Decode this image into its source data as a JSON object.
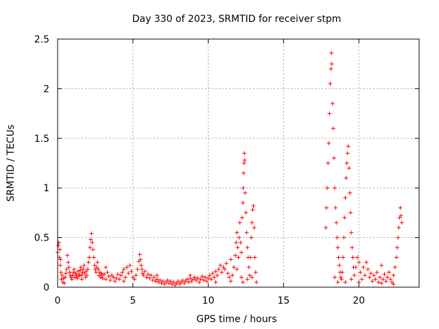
{
  "chart_data": {
    "type": "scatter",
    "title": "Day 330 of 2023, SRMTID for receiver stpm",
    "xlabel": "GPS time / hours",
    "ylabel": "SRMTID / TECUs",
    "xlim": [
      0,
      24
    ],
    "ylim": [
      0,
      2.5
    ],
    "xticks": [
      {
        "value": 0,
        "label": "0"
      },
      {
        "value": 5,
        "label": "5"
      },
      {
        "value": 10,
        "label": "10"
      },
      {
        "value": 15,
        "label": "15"
      },
      {
        "value": 20,
        "label": "20"
      }
    ],
    "yticks": [
      {
        "value": 0,
        "label": "0"
      },
      {
        "value": 0.5,
        "label": "0.5"
      },
      {
        "value": 1,
        "label": "1"
      },
      {
        "value": 1.5,
        "label": "1.5"
      },
      {
        "value": 2,
        "label": "2"
      },
      {
        "value": 2.5,
        "label": "2.5"
      }
    ],
    "grid": true,
    "marker": "+",
    "color": "#ff0000",
    "series": [
      {
        "name": "SRMTID",
        "points": [
          [
            0.0,
            0.35
          ],
          [
            0.05,
            0.42
          ],
          [
            0.08,
            0.45
          ],
          [
            0.12,
            0.3
          ],
          [
            0.15,
            0.38
          ],
          [
            0.18,
            0.22
          ],
          [
            0.22,
            0.15
          ],
          [
            0.25,
            0.08
          ],
          [
            0.3,
            0.12
          ],
          [
            0.35,
            0.05
          ],
          [
            0.4,
            0.09
          ],
          [
            0.45,
            0.04
          ],
          [
            0.5,
            0.1
          ],
          [
            0.55,
            0.14
          ],
          [
            0.6,
            0.18
          ],
          [
            0.65,
            0.32
          ],
          [
            0.7,
            0.25
          ],
          [
            0.75,
            0.2
          ],
          [
            0.8,
            0.15
          ],
          [
            0.85,
            0.12
          ],
          [
            0.9,
            0.1
          ],
          [
            0.95,
            0.08
          ],
          [
            1.0,
            0.12
          ],
          [
            1.05,
            0.15
          ],
          [
            1.1,
            0.18
          ],
          [
            1.15,
            0.1
          ],
          [
            1.2,
            0.14
          ],
          [
            1.25,
            0.12
          ],
          [
            1.3,
            0.09
          ],
          [
            1.35,
            0.16
          ],
          [
            1.4,
            0.11
          ],
          [
            1.45,
            0.13
          ],
          [
            1.5,
            0.17
          ],
          [
            1.55,
            0.2
          ],
          [
            1.6,
            0.12
          ],
          [
            1.65,
            0.15
          ],
          [
            1.7,
            0.18
          ],
          [
            1.75,
            0.22
          ],
          [
            1.8,
            0.14
          ],
          [
            1.85,
            0.1
          ],
          [
            1.9,
            0.16
          ],
          [
            1.95,
            0.12
          ],
          [
            2.0,
            0.18
          ],
          [
            2.05,
            0.25
          ],
          [
            2.1,
            0.3
          ],
          [
            2.15,
            0.4
          ],
          [
            2.2,
            0.48
          ],
          [
            2.25,
            0.54
          ],
          [
            2.3,
            0.45
          ],
          [
            2.35,
            0.38
          ],
          [
            2.4,
            0.3
          ],
          [
            2.45,
            0.22
          ],
          [
            2.5,
            0.18
          ],
          [
            2.55,
            0.15
          ],
          [
            2.6,
            0.2
          ],
          [
            2.65,
            0.25
          ],
          [
            2.7,
            0.18
          ],
          [
            2.75,
            0.12
          ],
          [
            2.8,
            0.15
          ],
          [
            2.85,
            0.1
          ],
          [
            2.9,
            0.14
          ],
          [
            2.95,
            0.12
          ],
          [
            3.0,
            0.09
          ],
          [
            3.1,
            0.13
          ],
          [
            3.2,
            0.08
          ],
          [
            3.3,
            0.15
          ],
          [
            3.4,
            0.11
          ],
          [
            3.5,
            0.07
          ],
          [
            3.6,
            0.12
          ],
          [
            3.7,
            0.1
          ],
          [
            3.8,
            0.06
          ],
          [
            3.9,
            0.09
          ],
          [
            4.0,
            0.13
          ],
          [
            4.1,
            0.08
          ],
          [
            4.2,
            0.12
          ],
          [
            4.3,
            0.15
          ],
          [
            4.4,
            0.18
          ],
          [
            4.5,
            0.1
          ],
          [
            4.6,
            0.2
          ],
          [
            4.7,
            0.14
          ],
          [
            4.8,
            0.22
          ],
          [
            4.9,
            0.16
          ],
          [
            5.0,
            0.1
          ],
          [
            5.1,
            0.08
          ],
          [
            5.2,
            0.12
          ],
          [
            5.3,
            0.18
          ],
          [
            5.4,
            0.26
          ],
          [
            5.45,
            0.33
          ],
          [
            5.5,
            0.28
          ],
          [
            5.55,
            0.22
          ],
          [
            5.6,
            0.18
          ],
          [
            5.65,
            0.14
          ],
          [
            5.7,
            0.12
          ],
          [
            5.8,
            0.16
          ],
          [
            5.9,
            0.1
          ],
          [
            6.0,
            0.13
          ],
          [
            6.1,
            0.09
          ],
          [
            6.2,
            0.12
          ],
          [
            6.3,
            0.07
          ],
          [
            6.4,
            0.1
          ],
          [
            6.5,
            0.06
          ],
          [
            6.6,
            0.08
          ],
          [
            6.7,
            0.05
          ],
          [
            6.8,
            0.07
          ],
          [
            6.9,
            0.04
          ],
          [
            7.0,
            0.06
          ],
          [
            7.1,
            0.03
          ],
          [
            7.2,
            0.05
          ],
          [
            7.3,
            0.07
          ],
          [
            7.4,
            0.04
          ],
          [
            7.5,
            0.06
          ],
          [
            7.6,
            0.03
          ],
          [
            7.7,
            0.05
          ],
          [
            7.8,
            0.02
          ],
          [
            7.9,
            0.04
          ],
          [
            8.0,
            0.06
          ],
          [
            8.1,
            0.03
          ],
          [
            8.2,
            0.05
          ],
          [
            8.3,
            0.07
          ],
          [
            8.4,
            0.04
          ],
          [
            8.5,
            0.06
          ],
          [
            8.6,
            0.08
          ],
          [
            8.7,
            0.05
          ],
          [
            8.8,
            0.09
          ],
          [
            8.9,
            0.06
          ],
          [
            9.0,
            0.08
          ],
          [
            9.1,
            0.1
          ],
          [
            9.2,
            0.07
          ],
          [
            9.3,
            0.09
          ],
          [
            9.4,
            0.05
          ],
          [
            9.5,
            0.08
          ],
          [
            9.6,
            0.11
          ],
          [
            9.7,
            0.07
          ],
          [
            9.8,
            0.1
          ],
          [
            9.9,
            0.06
          ],
          [
            10.0,
            0.09
          ],
          [
            10.1,
            0.12
          ],
          [
            10.2,
            0.08
          ],
          [
            10.3,
            0.14
          ],
          [
            10.4,
            0.1
          ],
          [
            10.5,
            0.16
          ],
          [
            10.6,
            0.12
          ],
          [
            10.7,
            0.18
          ],
          [
            10.8,
            0.22
          ],
          [
            10.9,
            0.15
          ],
          [
            11.0,
            0.2
          ],
          [
            11.1,
            0.18
          ],
          [
            11.2,
            0.24
          ],
          [
            11.3,
            0.14
          ],
          [
            11.4,
            0.1
          ],
          [
            11.5,
            0.06
          ],
          [
            11.6,
            0.12
          ],
          [
            11.7,
            0.2
          ],
          [
            11.8,
            0.32
          ],
          [
            11.85,
            0.45
          ],
          [
            11.9,
            0.55
          ],
          [
            11.95,
            0.4
          ],
          [
            12.0,
            0.3
          ],
          [
            12.05,
            0.5
          ],
          [
            12.1,
            0.65
          ],
          [
            12.15,
            0.45
          ],
          [
            12.2,
            0.35
          ],
          [
            12.25,
            0.7
          ],
          [
            12.3,
            0.85
          ],
          [
            12.32,
            1.0
          ],
          [
            12.35,
            1.15
          ],
          [
            12.38,
            1.25
          ],
          [
            12.4,
            1.35
          ],
          [
            12.42,
            1.28
          ],
          [
            12.45,
            0.95
          ],
          [
            12.5,
            0.75
          ],
          [
            12.55,
            0.55
          ],
          [
            12.6,
            0.4
          ],
          [
            12.65,
            0.3
          ],
          [
            12.7,
            0.2
          ],
          [
            12.75,
            0.12
          ],
          [
            12.8,
            0.3
          ],
          [
            12.85,
            0.5
          ],
          [
            12.9,
            0.65
          ],
          [
            12.95,
            0.78
          ],
          [
            13.0,
            0.82
          ],
          [
            13.05,
            0.6
          ],
          [
            13.1,
            0.3
          ],
          [
            13.15,
            0.15
          ],
          [
            13.2,
            0.05
          ],
          [
            12.2,
            0.1
          ],
          [
            12.3,
            0.05
          ],
          [
            12.6,
            0.08
          ],
          [
            12.9,
            0.1
          ],
          [
            11.9,
            0.18
          ],
          [
            17.8,
            0.6
          ],
          [
            17.85,
            0.8
          ],
          [
            17.9,
            1.0
          ],
          [
            17.95,
            1.25
          ],
          [
            18.0,
            1.45
          ],
          [
            18.05,
            1.75
          ],
          [
            18.1,
            2.05
          ],
          [
            18.15,
            2.2
          ],
          [
            18.18,
            2.36
          ],
          [
            18.2,
            2.25
          ],
          [
            18.25,
            1.85
          ],
          [
            18.3,
            1.6
          ],
          [
            18.35,
            1.3
          ],
          [
            18.4,
            1.0
          ],
          [
            18.45,
            0.8
          ],
          [
            18.5,
            0.65
          ],
          [
            18.55,
            0.5
          ],
          [
            18.6,
            0.4
          ],
          [
            18.65,
            0.3
          ],
          [
            18.7,
            0.22
          ],
          [
            18.75,
            0.15
          ],
          [
            18.8,
            0.1
          ],
          [
            18.85,
            0.08
          ],
          [
            18.9,
            0.15
          ],
          [
            18.95,
            0.3
          ],
          [
            19.0,
            0.5
          ],
          [
            19.05,
            0.7
          ],
          [
            19.1,
            0.9
          ],
          [
            19.15,
            1.1
          ],
          [
            19.2,
            1.25
          ],
          [
            19.25,
            1.35
          ],
          [
            19.3,
            1.42
          ],
          [
            19.35,
            1.2
          ],
          [
            19.4,
            0.95
          ],
          [
            19.45,
            0.75
          ],
          [
            19.5,
            0.55
          ],
          [
            19.55,
            0.4
          ],
          [
            19.6,
            0.3
          ],
          [
            19.65,
            0.2
          ],
          [
            19.7,
            0.12
          ],
          [
            19.8,
            0.2
          ],
          [
            19.9,
            0.3
          ],
          [
            20.0,
            0.25
          ],
          [
            20.1,
            0.15
          ],
          [
            20.2,
            0.08
          ],
          [
            20.3,
            0.2
          ],
          [
            20.4,
            0.12
          ],
          [
            20.5,
            0.25
          ],
          [
            20.6,
            0.18
          ],
          [
            20.7,
            0.1
          ],
          [
            20.8,
            0.14
          ],
          [
            20.9,
            0.06
          ],
          [
            21.0,
            0.12
          ],
          [
            21.1,
            0.08
          ],
          [
            21.2,
            0.15
          ],
          [
            21.3,
            0.05
          ],
          [
            21.4,
            0.1
          ],
          [
            21.5,
            0.04
          ],
          [
            21.6,
            0.08
          ],
          [
            21.7,
            0.13
          ],
          [
            21.8,
            0.06
          ],
          [
            21.9,
            0.1
          ],
          [
            22.0,
            0.15
          ],
          [
            22.1,
            0.08
          ],
          [
            22.2,
            0.05
          ],
          [
            22.3,
            0.12
          ],
          [
            22.4,
            0.2
          ],
          [
            22.5,
            0.3
          ],
          [
            22.55,
            0.4
          ],
          [
            22.6,
            0.5
          ],
          [
            22.65,
            0.6
          ],
          [
            22.7,
            0.7
          ],
          [
            22.75,
            0.8
          ],
          [
            22.8,
            0.72
          ],
          [
            22.85,
            0.65
          ],
          [
            18.4,
            0.1
          ],
          [
            18.6,
            0.05
          ],
          [
            19.1,
            0.05
          ],
          [
            19.5,
            0.08
          ],
          [
            20.0,
            0.05
          ],
          [
            0.2,
            0.28
          ],
          [
            1.6,
            0.08
          ],
          [
            3.2,
            0.2
          ],
          [
            4.4,
            0.06
          ],
          [
            6.6,
            0.12
          ],
          [
            8.8,
            0.12
          ],
          [
            10.5,
            0.05
          ],
          [
            11.5,
            0.28
          ],
          [
            21.5,
            0.22
          ],
          [
            22.3,
            0.03
          ]
        ]
      }
    ]
  }
}
